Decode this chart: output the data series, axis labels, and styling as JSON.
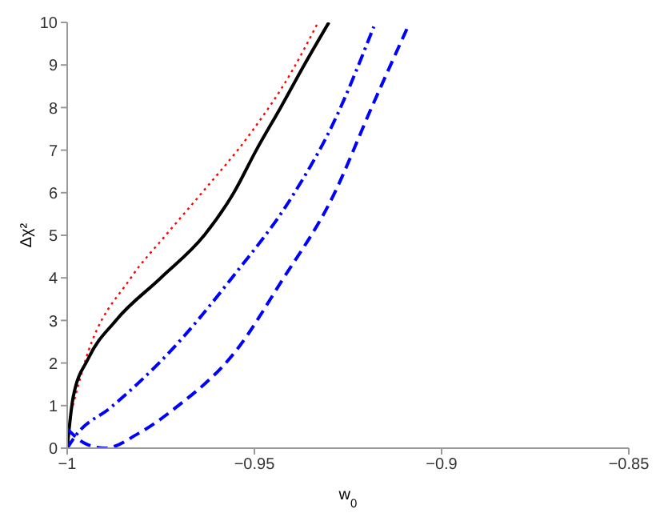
{
  "chart_data": {
    "type": "line",
    "xlabel": "w$_{0}$",
    "ylabel": "Δχ²",
    "xlim": [
      -1,
      -0.85
    ],
    "ylim": [
      0,
      10
    ],
    "xticks": [
      -1,
      -0.95,
      -0.9,
      -0.85
    ],
    "yticks": [
      0,
      1,
      2,
      3,
      4,
      5,
      6,
      7,
      8,
      9,
      10
    ],
    "grid": false,
    "legend": false,
    "marker": "none",
    "series": [
      {
        "color": "#ff0000",
        "line_style": "dotted",
        "x": [
          -0.9985,
          -0.995,
          -0.983,
          -0.9737,
          -0.964,
          -0.951,
          -0.94,
          -0.933
        ],
        "values": [
          1.0,
          2.1,
          4,
          5,
          6,
          7.4,
          8.85,
          10
        ]
      },
      {
        "color": "#000000",
        "line_style": "solid",
        "x": [
          -1,
          -0.9984,
          -0.9944,
          -0.987,
          -0.975,
          -0.9634,
          -0.9555,
          -0.9495,
          -0.943,
          -0.9367,
          -0.9301
        ],
        "values": [
          0,
          1.2,
          2.1,
          3,
          4,
          5,
          6,
          7,
          8,
          9,
          10
        ]
      },
      {
        "color": "#0000ff",
        "line_style": "dashdot",
        "x": [
          -1,
          -0.9977,
          -0.9883,
          -0.9722,
          -0.956,
          -0.94,
          -0.9291,
          -0.9181
        ],
        "values": [
          0,
          0.3,
          0.96,
          2.3,
          4.0,
          5.9,
          7.6,
          9.9
        ]
      },
      {
        "color": "#0000ff",
        "line_style": "dashed",
        "x": [
          -1,
          -0.995,
          -0.9899,
          -0.9809,
          -0.9709,
          -0.9548,
          -0.9429,
          -0.9291,
          -0.9187,
          -0.909
        ],
        "values": [
          0.45,
          0.1,
          0,
          0.35,
          0.96,
          2.3,
          3.9,
          5.9,
          8.0,
          9.9
        ]
      }
    ]
  }
}
